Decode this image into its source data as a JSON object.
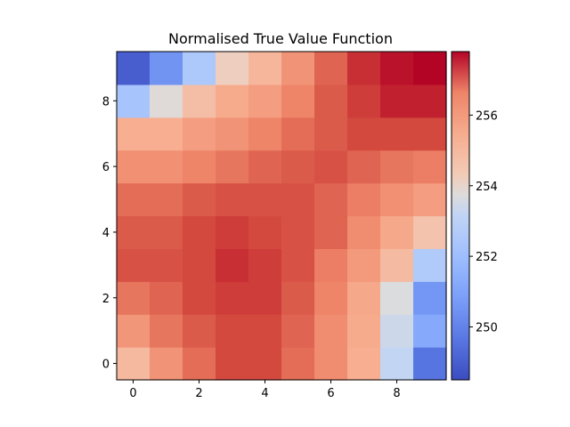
{
  "chart_data": {
    "type": "heatmap",
    "title": "Normalised True Value Function",
    "xlabel": "",
    "ylabel": "",
    "x_ticks": [
      0,
      2,
      4,
      6,
      8
    ],
    "y_ticks": [
      0,
      2,
      4,
      6,
      8
    ],
    "x_range": [
      -0.5,
      9.5
    ],
    "y_range": [
      -0.5,
      9.5
    ],
    "origin": "lower",
    "colormap": "coolwarm",
    "color_range": [
      248.5,
      257.8
    ],
    "colorbar_ticks": [
      250,
      252,
      254,
      256
    ],
    "rows": [
      [
        255.0,
        256.2,
        256.9,
        257.3,
        257.3,
        256.9,
        256.4,
        255.4,
        253.2,
        249.6
      ],
      [
        256.1,
        256.8,
        257.1,
        257.3,
        257.3,
        257.0,
        256.4,
        255.5,
        253.4,
        251.2
      ],
      [
        256.8,
        257.0,
        257.3,
        257.4,
        257.4,
        257.1,
        256.6,
        255.6,
        253.7,
        250.6
      ],
      [
        257.2,
        257.2,
        257.3,
        257.5,
        257.4,
        257.2,
        256.7,
        256.0,
        254.9,
        252.6
      ],
      [
        257.1,
        257.1,
        257.3,
        257.4,
        257.3,
        257.2,
        257.0,
        256.4,
        255.6,
        254.6
      ],
      [
        256.9,
        256.9,
        257.1,
        257.2,
        257.2,
        257.2,
        257.0,
        256.7,
        256.3,
        255.9
      ],
      [
        256.3,
        256.3,
        256.6,
        256.8,
        257.0,
        257.1,
        257.2,
        257.0,
        256.8,
        256.7
      ],
      [
        255.4,
        255.4,
        255.9,
        256.2,
        256.6,
        256.9,
        257.1,
        257.3,
        257.3,
        257.3
      ],
      [
        252.3,
        253.8,
        254.8,
        255.5,
        255.9,
        256.6,
        257.1,
        257.4,
        257.6,
        257.6
      ],
      [
        249.0,
        250.5,
        252.5,
        254.2,
        255.1,
        256.2,
        257.0,
        257.5,
        257.7,
        257.8
      ]
    ]
  }
}
